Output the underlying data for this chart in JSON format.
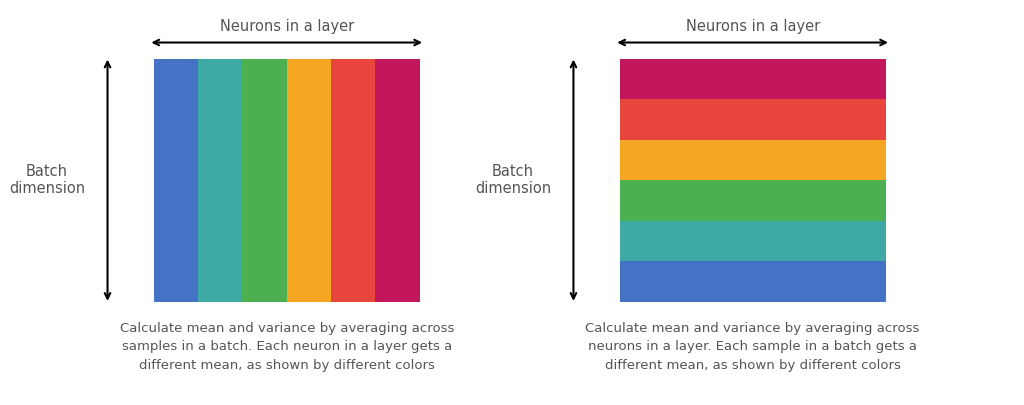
{
  "left_colors": [
    "#4472C4",
    "#3FA9A5",
    "#4CAF50",
    "#F5A623",
    "#E8453C",
    "#C2185B"
  ],
  "right_colors_top_to_bottom": [
    "#C2185B",
    "#E8453C",
    "#F5A623",
    "#4CAF50",
    "#3FA9A5",
    "#4472C4"
  ],
  "top_label": "Neurons in a layer",
  "left_label": "Batch\ndimension",
  "left_caption": "Calculate mean and variance by averaging across\nsamples in a batch. Each neuron in a layer gets a\ndifferent mean, as shown by different colors",
  "right_caption": "Calculate mean and variance by averaging across\nneurons in a layer. Each sample in a batch gets a\ndifferent mean, as shown by different colors",
  "text_color": "#555555",
  "bg_color": "#ffffff",
  "label_fontsize": 10.5,
  "caption_fontsize": 9.5
}
